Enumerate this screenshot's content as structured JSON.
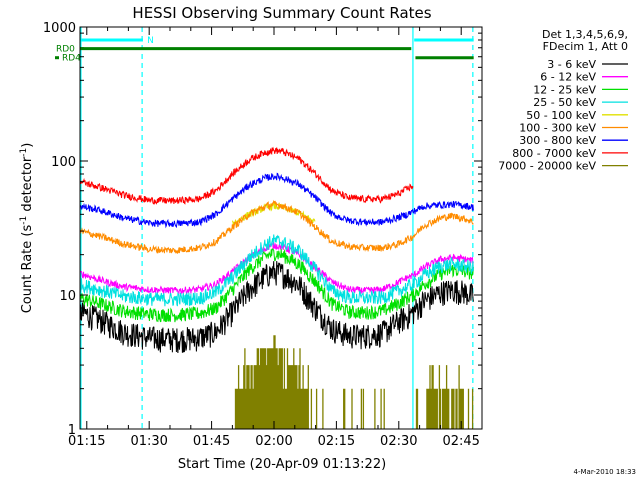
{
  "chart_data": {
    "type": "line",
    "title": "HESSI Observing Summary Count Rates",
    "xlabel": "Start Time (20-Apr-09 01:13:22)",
    "ylabel_main": "Count Rate (s",
    "ylabel_sup1": "-1",
    "ylabel_mid": " detector",
    "ylabel_sup2": "-1",
    "ylabel_end": ")",
    "yscale": "log",
    "ylim": [
      1,
      1000
    ],
    "xlim_min": [
      73.37,
      170.0
    ],
    "x_ticks": [
      {
        "min": 75,
        "label": "01:15"
      },
      {
        "min": 90,
        "label": "01:30"
      },
      {
        "min": 105,
        "label": "01:45"
      },
      {
        "min": 120,
        "label": "02:00"
      },
      {
        "min": 135,
        "label": "02:15"
      },
      {
        "min": 150,
        "label": "02:30"
      },
      {
        "min": 165,
        "label": "02:45"
      }
    ],
    "y_ticks": [
      {
        "value": 1,
        "label": "1"
      },
      {
        "value": 10,
        "label": "10"
      },
      {
        "value": 100,
        "label": "100"
      },
      {
        "value": 1000,
        "label": "1000"
      }
    ],
    "legend_header": [
      "Det 1,3,4,5,6,9,",
      "FDecim 1, Att 0"
    ],
    "legend_position": "right",
    "series": [
      {
        "name": "3 - 6 keV",
        "color": "#000000",
        "points": [
          [
            73.5,
            7.5
          ],
          [
            78,
            6.6
          ],
          [
            84,
            5.3
          ],
          [
            90,
            4.8
          ],
          [
            96,
            4.7
          ],
          [
            102,
            4.8
          ],
          [
            106,
            5.3
          ],
          [
            110,
            7.5
          ],
          [
            114,
            11
          ],
          [
            118,
            14
          ],
          [
            120,
            15
          ],
          [
            122,
            14.5
          ],
          [
            126,
            12
          ],
          [
            130,
            8
          ],
          [
            134,
            5.6
          ],
          [
            138,
            5.0
          ],
          [
            142,
            5.0
          ],
          [
            146,
            5.2
          ],
          [
            150,
            6.4
          ],
          [
            152,
            6.9
          ],
          [
            153.5,
            7.5
          ],
          [
            156,
            9
          ],
          [
            160,
            10.5
          ],
          [
            163,
            11
          ],
          [
            166,
            10.5
          ],
          [
            168,
            9.8
          ]
        ]
      },
      {
        "name": "6 - 12 keV",
        "color": "#ff00ff",
        "points": [
          [
            73.5,
            14.5
          ],
          [
            78,
            13
          ],
          [
            84,
            11.5
          ],
          [
            90,
            11
          ],
          [
            96,
            10.8
          ],
          [
            102,
            11
          ],
          [
            106,
            12
          ],
          [
            110,
            15
          ],
          [
            114,
            19
          ],
          [
            118,
            22.5
          ],
          [
            120,
            23.5
          ],
          [
            122,
            23
          ],
          [
            126,
            20
          ],
          [
            130,
            16
          ],
          [
            134,
            12.5
          ],
          [
            138,
            11
          ],
          [
            142,
            10.8
          ],
          [
            146,
            11
          ],
          [
            150,
            12.5
          ],
          [
            152,
            13.5
          ],
          [
            153.5,
            14
          ],
          [
            156,
            16
          ],
          [
            160,
            18.5
          ],
          [
            163,
            19
          ],
          [
            166,
            18.5
          ],
          [
            168,
            18
          ]
        ]
      },
      {
        "name": "12 - 25 keV",
        "color": "#00e000",
        "points": [
          [
            73.5,
            9.5
          ],
          [
            78,
            8.7
          ],
          [
            84,
            7.6
          ],
          [
            90,
            7.2
          ],
          [
            96,
            7.1
          ],
          [
            102,
            7.3
          ],
          [
            106,
            8
          ],
          [
            110,
            11
          ],
          [
            114,
            15.5
          ],
          [
            118,
            19.5
          ],
          [
            120,
            20.5
          ],
          [
            122,
            20
          ],
          [
            126,
            17
          ],
          [
            130,
            12.5
          ],
          [
            134,
            8.6
          ],
          [
            138,
            7.5
          ],
          [
            142,
            7.4
          ],
          [
            146,
            7.6
          ],
          [
            150,
            8.7
          ],
          [
            152,
            9.5
          ],
          [
            153.5,
            10
          ],
          [
            156,
            12
          ],
          [
            160,
            14.5
          ],
          [
            163,
            15.5
          ],
          [
            166,
            15
          ],
          [
            168,
            14.5
          ]
        ]
      },
      {
        "name": "25 - 50 keV",
        "color": "#00e0e0",
        "points": [
          [
            73.5,
            12
          ],
          [
            78,
            11
          ],
          [
            84,
            9.8
          ],
          [
            90,
            9.4
          ],
          [
            96,
            9.3
          ],
          [
            102,
            9.5
          ],
          [
            106,
            10.5
          ],
          [
            110,
            13.5
          ],
          [
            114,
            19
          ],
          [
            118,
            24
          ],
          [
            120,
            25.5
          ],
          [
            122,
            25
          ],
          [
            126,
            21.5
          ],
          [
            130,
            15.5
          ],
          [
            134,
            10.8
          ],
          [
            138,
            9.6
          ],
          [
            142,
            9.5
          ],
          [
            146,
            9.6
          ],
          [
            150,
            10.8
          ],
          [
            152,
            11.5
          ],
          [
            153.5,
            12
          ],
          [
            156,
            14
          ],
          [
            160,
            16.5
          ],
          [
            163,
            17
          ],
          [
            166,
            16.5
          ],
          [
            168,
            16
          ]
        ]
      },
      {
        "name": "50 - 100 keV",
        "color": "#e0e000",
        "points": [
          [
            110,
            34
          ],
          [
            114,
            40
          ],
          [
            118,
            45
          ],
          [
            120,
            46
          ],
          [
            122,
            45
          ],
          [
            126,
            41
          ],
          [
            130,
            35
          ]
        ]
      },
      {
        "name": "100 - 300 keV",
        "color": "#ff8c00",
        "points": [
          [
            73.5,
            30
          ],
          [
            78,
            27.5
          ],
          [
            84,
            24
          ],
          [
            90,
            22
          ],
          [
            96,
            21.5
          ],
          [
            102,
            22.5
          ],
          [
            106,
            25
          ],
          [
            110,
            32
          ],
          [
            114,
            40
          ],
          [
            118,
            46
          ],
          [
            120,
            47.5
          ],
          [
            122,
            46.5
          ],
          [
            126,
            41
          ],
          [
            130,
            32
          ],
          [
            134,
            25
          ],
          [
            138,
            23
          ],
          [
            142,
            22.5
          ],
          [
            146,
            22.5
          ],
          [
            150,
            24
          ],
          [
            152,
            26
          ],
          [
            153.5,
            27.5
          ],
          [
            156,
            33
          ],
          [
            160,
            37.5
          ],
          [
            163,
            39
          ],
          [
            166,
            37
          ],
          [
            168,
            35
          ]
        ]
      },
      {
        "name": "300 - 800 keV",
        "color": "#0000ff",
        "points": [
          [
            73.5,
            46
          ],
          [
            78,
            43
          ],
          [
            84,
            37.5
          ],
          [
            90,
            34.5
          ],
          [
            96,
            34
          ],
          [
            102,
            35
          ],
          [
            106,
            40
          ],
          [
            110,
            52
          ],
          [
            114,
            66
          ],
          [
            118,
            75
          ],
          [
            120,
            77
          ],
          [
            122,
            75.5
          ],
          [
            126,
            67
          ],
          [
            130,
            53
          ],
          [
            134,
            40
          ],
          [
            138,
            36
          ],
          [
            142,
            35
          ],
          [
            146,
            35
          ],
          [
            150,
            38
          ],
          [
            152,
            40
          ],
          [
            153.5,
            42
          ],
          [
            156,
            46
          ],
          [
            160,
            47
          ],
          [
            163,
            47.5
          ],
          [
            166,
            46.5
          ],
          [
            168,
            45
          ]
        ]
      },
      {
        "name": "800 - 7000 keV",
        "color": "#ff0000",
        "points": [
          [
            73.5,
            70
          ],
          [
            78,
            64
          ],
          [
            84,
            55.5
          ],
          [
            90,
            51
          ],
          [
            96,
            50.5
          ],
          [
            102,
            52
          ],
          [
            106,
            60
          ],
          [
            110,
            80
          ],
          [
            114,
            102
          ],
          [
            118,
            117
          ],
          [
            120,
            120
          ],
          [
            122,
            118
          ],
          [
            126,
            104
          ],
          [
            130,
            80
          ],
          [
            134,
            60
          ],
          [
            138,
            53
          ],
          [
            142,
            52
          ],
          [
            146,
            52
          ],
          [
            150,
            57
          ],
          [
            152,
            62
          ],
          [
            153.5,
            66
          ]
        ]
      },
      {
        "name": "7000 - 20000 keV",
        "color": "#808000",
        "points": [
          [
            110,
            1
          ],
          [
            111,
            2
          ],
          [
            112,
            2
          ],
          [
            113,
            3
          ],
          [
            114,
            3
          ],
          [
            116,
            3.5
          ],
          [
            118,
            3.5
          ],
          [
            119,
            3.5
          ],
          [
            120,
            4
          ],
          [
            121,
            3.5
          ],
          [
            122,
            3.5
          ],
          [
            124,
            3
          ],
          [
            126,
            3
          ],
          [
            127,
            2
          ],
          [
            128,
            2
          ],
          [
            129,
            1
          ],
          [
            130,
            1
          ],
          [
            156,
            1
          ],
          [
            157,
            2
          ],
          [
            159,
            2
          ],
          [
            161,
            2
          ],
          [
            163,
            2
          ],
          [
            165,
            2
          ],
          [
            166,
            1
          ],
          [
            168,
            1
          ]
        ]
      }
    ],
    "bars": [
      {
        "label": "N",
        "color": "#00ffff",
        "y": 800,
        "segments": [
          [
            73.5,
            88.5
          ],
          [
            153.7,
            168
          ]
        ]
      },
      {
        "label": "RD0",
        "color": "#008000",
        "y": 690,
        "segments": [
          [
            73.5,
            153
          ]
        ]
      },
      {
        "label": "RD4",
        "color": "#008000",
        "y": 590,
        "segments": [
          [
            154,
            168
          ]
        ]
      }
    ],
    "vlines": [
      {
        "min": 73.6,
        "color": "#00ffff",
        "style": "solid"
      },
      {
        "min": 88.3,
        "color": "#00ffff",
        "style": "dashed"
      },
      {
        "min": 153.4,
        "color": "#00ffff",
        "style": "solid"
      },
      {
        "min": 167.8,
        "color": "#00ffff",
        "style": "dashed"
      }
    ]
  },
  "footer": {
    "timestamp": "4-Mar-2010 18:33"
  }
}
